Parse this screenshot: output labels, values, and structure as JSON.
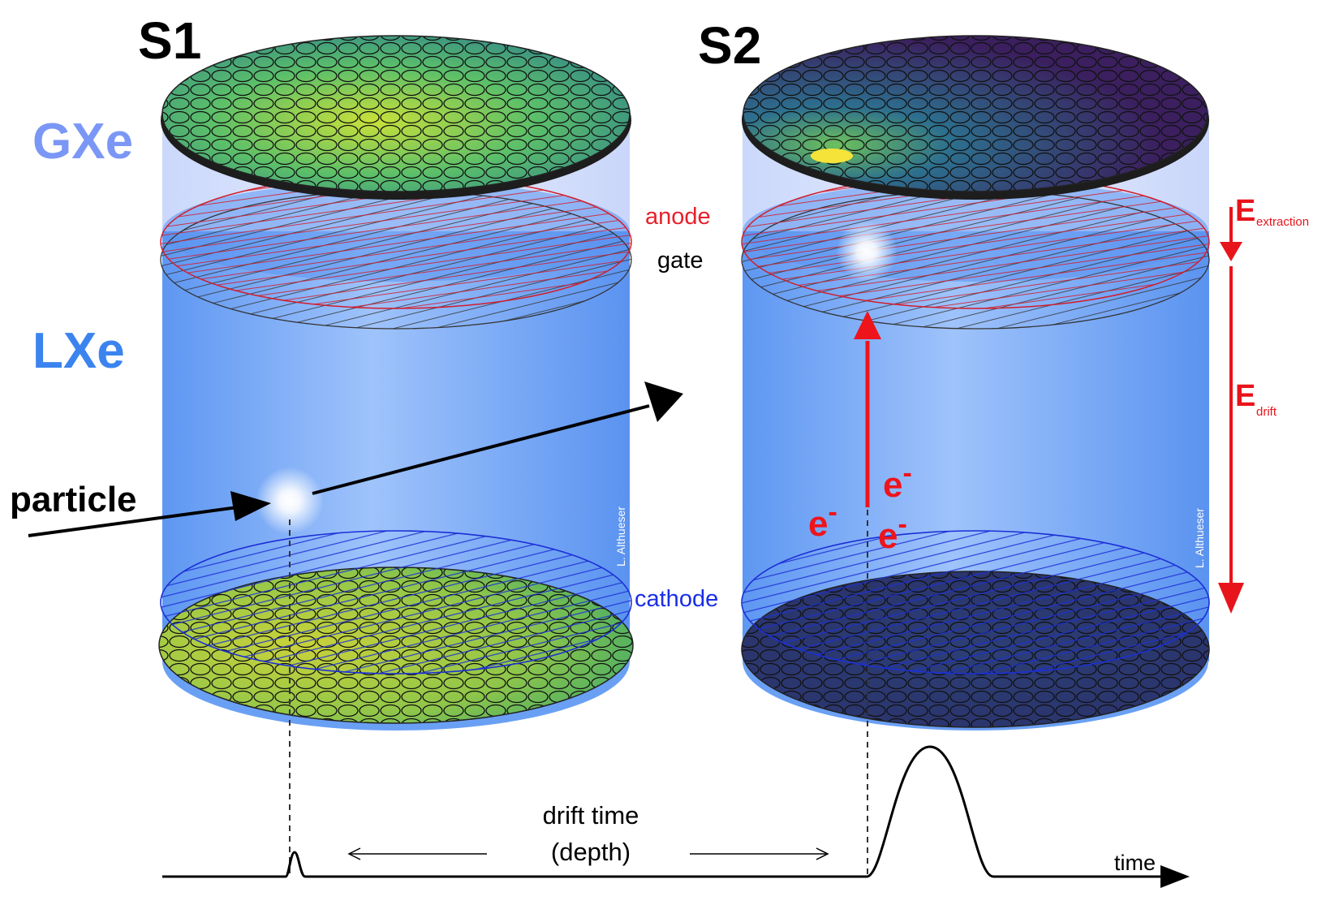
{
  "panels": {
    "s1": {
      "title": "S1"
    },
    "s2": {
      "title": "S2"
    }
  },
  "phases": {
    "gas": "GXe",
    "liquid": "LXe"
  },
  "electrodes": {
    "anode": "anode",
    "gate": "gate",
    "cathode": "cathode"
  },
  "particle_label": "particle",
  "electron_label": "e",
  "electron_superscript": "-",
  "fields": {
    "extraction": {
      "symbol": "E",
      "subscript": "extraction"
    },
    "drift": {
      "symbol": "E",
      "subscript": "drift"
    }
  },
  "credit": "L. Althueser",
  "waveform": {
    "drift_time_line1": "drift time",
    "drift_time_line2": "(depth)",
    "axis_label": "time"
  },
  "colors": {
    "liquid": "#4f8ff0",
    "gas": "#d8e2fb",
    "anode": "#e8202a",
    "cathode": "#1a2ee8",
    "field_arrow": "#e8141b",
    "gas_label": "#7b97f5",
    "liquid_label": "#3b84f0"
  },
  "icons": [
    "pmt-array-top",
    "pmt-array-bottom",
    "anode-mesh",
    "gate-mesh",
    "cathode-mesh",
    "scintillation-flash",
    "electron-drift-arrow",
    "field-arrow"
  ]
}
